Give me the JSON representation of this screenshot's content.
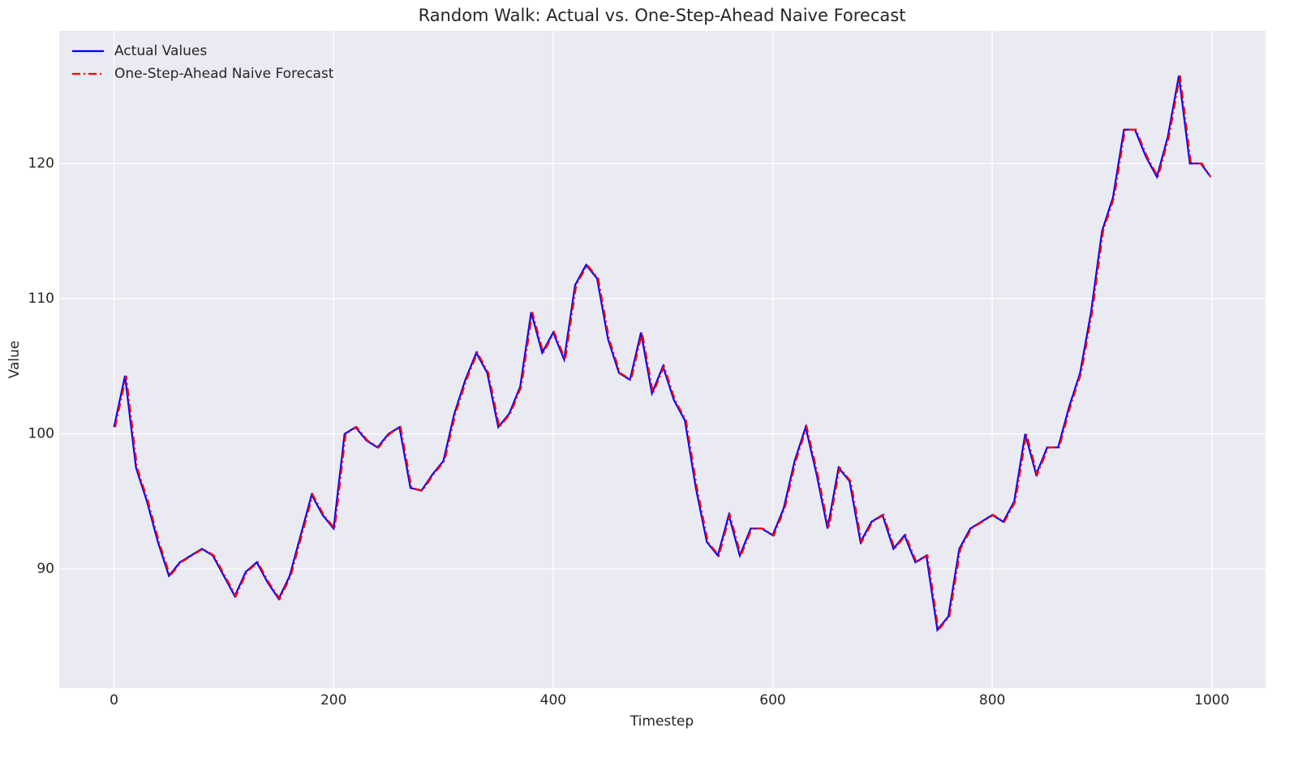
{
  "chart_data": {
    "type": "line",
    "title": "Random Walk: Actual vs. One-Step-Ahead Naive Forecast",
    "x_label": "Timestep",
    "y_label": "Value",
    "xlim": [
      -49.95,
      1048.95
    ],
    "ylim": [
      81.19,
      129.81
    ],
    "xticks": [
      0,
      200,
      400,
      600,
      800,
      1000
    ],
    "yticks": [
      90,
      100,
      110,
      120
    ],
    "grid": true,
    "legend": "upper-left",
    "series": [
      {
        "name": "Actual Values",
        "color": "#0000ff",
        "style": "solid",
        "x": [
          0,
          10,
          20,
          30,
          40,
          50,
          60,
          70,
          80,
          90,
          100,
          110,
          120,
          130,
          140,
          150,
          160,
          170,
          180,
          190,
          200,
          210,
          220,
          230,
          240,
          250,
          260,
          270,
          280,
          290,
          300,
          310,
          320,
          330,
          340,
          350,
          360,
          370,
          380,
          390,
          400,
          410,
          420,
          430,
          440,
          450,
          460,
          470,
          480,
          490,
          500,
          510,
          520,
          530,
          540,
          550,
          560,
          570,
          580,
          590,
          600,
          610,
          620,
          630,
          640,
          650,
          660,
          670,
          680,
          690,
          700,
          710,
          720,
          730,
          740,
          750,
          760,
          770,
          780,
          790,
          800,
          810,
          820,
          830,
          840,
          850,
          860,
          870,
          880,
          890,
          900,
          910,
          920,
          930,
          940,
          950,
          960,
          970,
          980,
          990,
          999
        ],
        "values": [
          100.5,
          104.3,
          97.5,
          95,
          92,
          89.5,
          90.5,
          91,
          91.5,
          91,
          89.5,
          88,
          89.8,
          90.5,
          89,
          87.8,
          89.5,
          92.5,
          95.5,
          94,
          93,
          100,
          100.5,
          99.5,
          99,
          100,
          100.5,
          96,
          95.8,
          97,
          98,
          101.5,
          104,
          106,
          104.5,
          100.5,
          101.5,
          103.5,
          109,
          106,
          107.5,
          105.5,
          111,
          112.5,
          111.5,
          107,
          104.5,
          104,
          107.5,
          103,
          105,
          102.5,
          101,
          96,
          92,
          91,
          94,
          91,
          93,
          93,
          92.5,
          94.5,
          98,
          100.5,
          97,
          93,
          97.5,
          96.5,
          92,
          93.5,
          94,
          91.5,
          92.5,
          90.5,
          91,
          85.5,
          86.5,
          91.5,
          93,
          93.5,
          94,
          93.5,
          95,
          100,
          97,
          99,
          99,
          102,
          104.5,
          109,
          115,
          117.5,
          122.5,
          122.5,
          120.5,
          119,
          122,
          126.5,
          120,
          120,
          119
        ]
      },
      {
        "name": "One-Step-Ahead Naive Forecast",
        "color": "#ff0000",
        "style": "dashdot",
        "x": [
          1,
          11,
          21,
          31,
          41,
          51,
          61,
          71,
          81,
          91,
          101,
          111,
          121,
          131,
          141,
          151,
          161,
          171,
          181,
          191,
          201,
          211,
          221,
          231,
          241,
          251,
          261,
          271,
          281,
          291,
          301,
          311,
          321,
          331,
          341,
          351,
          361,
          371,
          381,
          391,
          401,
          411,
          421,
          431,
          441,
          451,
          461,
          471,
          481,
          491,
          501,
          511,
          521,
          531,
          541,
          551,
          561,
          571,
          581,
          591,
          601,
          611,
          621,
          631,
          641,
          651,
          661,
          671,
          681,
          691,
          701,
          711,
          721,
          731,
          741,
          751,
          761,
          771,
          781,
          791,
          801,
          811,
          821,
          831,
          841,
          851,
          861,
          871,
          881,
          891,
          901,
          911,
          921,
          931,
          941,
          951,
          961,
          971,
          981,
          991,
          999
        ],
        "values": [
          100.5,
          104.3,
          97.5,
          95,
          92,
          89.5,
          90.5,
          91,
          91.5,
          91,
          89.5,
          88,
          89.8,
          90.5,
          89,
          87.8,
          89.5,
          92.5,
          95.5,
          94,
          93,
          100,
          100.5,
          99.5,
          99,
          100,
          100.5,
          96,
          95.8,
          97,
          98,
          101.5,
          104,
          106,
          104.5,
          100.5,
          101.5,
          103.5,
          109,
          106,
          107.5,
          105.5,
          111,
          112.5,
          111.5,
          107,
          104.5,
          104,
          107.5,
          103,
          105,
          102.5,
          101,
          96,
          92,
          91,
          94,
          91,
          93,
          93,
          92.5,
          94.5,
          98,
          100.5,
          97,
          93,
          97.5,
          96.5,
          92,
          93.5,
          94,
          91.5,
          92.5,
          90.5,
          91,
          85.5,
          86.5,
          91.5,
          93,
          93.5,
          94,
          93.5,
          95,
          100,
          97,
          99,
          99,
          102,
          104.5,
          109,
          115,
          117.5,
          122.5,
          122.5,
          120.5,
          119,
          122,
          126.5,
          120,
          120,
          119
        ]
      }
    ]
  }
}
